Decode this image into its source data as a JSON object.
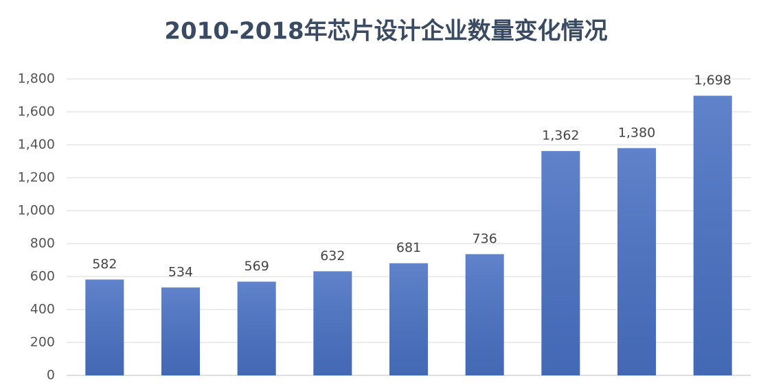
{
  "chart_data": {
    "type": "bar",
    "title": "2010-2018年芯片设计企业数量变化情况",
    "categories": [
      null,
      null,
      null,
      null,
      null,
      null,
      null,
      null,
      null
    ],
    "values": [
      582,
      534,
      569,
      632,
      681,
      736,
      1362,
      1380,
      1698
    ],
    "value_labels": [
      "582",
      "534",
      "569",
      "632",
      "681",
      "736",
      "1,362",
      "1,380",
      "1,698"
    ],
    "color": "#4a72c4",
    "ylim": [
      0,
      1800
    ],
    "yticks": [
      0,
      200,
      400,
      600,
      800,
      {
        "value": 1000,
        "label": "1,000"
      },
      {
        "value": 1200,
        "label": "1,200"
      },
      {
        "value": 1400,
        "label": "1,400"
      },
      {
        "value": 1600,
        "label": "1,600"
      },
      {
        "value": 1800,
        "label": "1,800"
      }
    ],
    "grid": true
  }
}
